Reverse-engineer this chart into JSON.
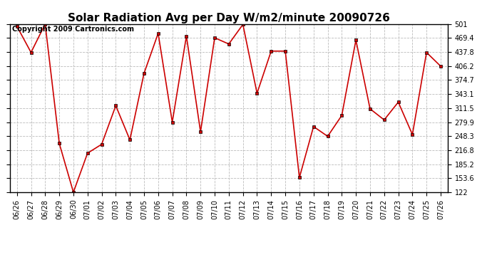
{
  "title": "Solar Radiation Avg per Day W/m2/minute 20090726",
  "copyright": "Copyright 2009 Cartronics.com",
  "labels": [
    "06/26",
    "06/27",
    "06/28",
    "06/29",
    "06/30",
    "07/01",
    "07/02",
    "07/03",
    "07/04",
    "07/05",
    "07/06",
    "07/07",
    "07/08",
    "07/09",
    "07/10",
    "07/11",
    "07/12",
    "07/13",
    "07/14",
    "07/15",
    "07/16",
    "07/17",
    "07/18",
    "07/19",
    "07/20",
    "07/21",
    "07/22",
    "07/23",
    "07/24",
    "07/25",
    "07/26"
  ],
  "values": [
    496,
    437,
    501,
    232,
    122,
    210,
    230,
    317,
    240,
    390,
    480,
    280,
    474,
    258,
    470,
    456,
    500,
    345,
    440,
    440,
    155,
    270,
    248,
    295,
    465,
    310,
    285,
    325,
    252,
    437,
    406
  ],
  "line_color": "#cc0000",
  "marker": "s",
  "marker_size": 3,
  "bg_color": "#ffffff",
  "grid_color": "#bbbbbb",
  "ymin": 122.0,
  "ymax": 501.0,
  "yticks": [
    122.0,
    153.6,
    185.2,
    216.8,
    248.3,
    279.9,
    311.5,
    343.1,
    374.7,
    406.2,
    437.8,
    469.4,
    501.0
  ],
  "title_fontsize": 11,
  "tick_fontsize": 7,
  "copyright_fontsize": 7
}
